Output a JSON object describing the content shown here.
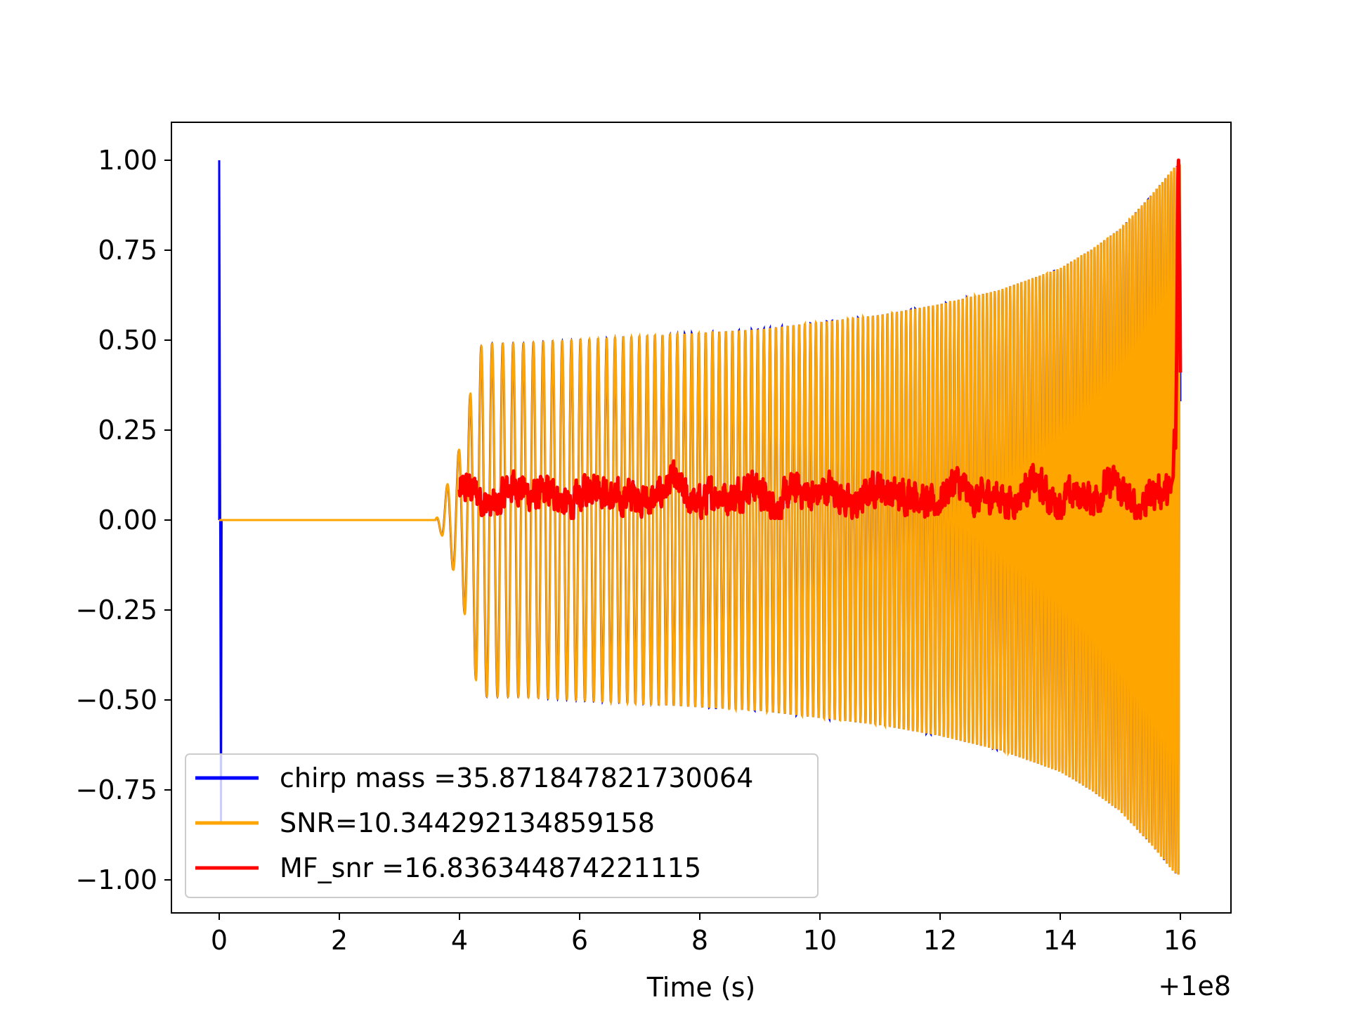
{
  "chart_data": {
    "type": "line",
    "title": "",
    "xlabel": "Time (s)",
    "ylabel": "",
    "x_offset_label": "+1e8",
    "xlim": [
      -0.8,
      16.8
    ],
    "ylim": [
      -1.09,
      1.1
    ],
    "xticks": [
      0,
      2,
      4,
      6,
      8,
      10,
      12,
      14,
      16
    ],
    "xtick_labels": [
      "0",
      "2",
      "4",
      "6",
      "8",
      "10",
      "12",
      "14",
      "16"
    ],
    "yticks": [
      1.0,
      0.75,
      0.5,
      0.25,
      0.0,
      -0.25,
      -0.5,
      -0.75,
      -1.0
    ],
    "ytick_labels": [
      "1.00",
      "0.75",
      "0.50",
      "0.25",
      "0.00",
      "−0.25",
      "−0.50",
      "−0.75",
      "−1.00"
    ],
    "grid": false,
    "legend_position": "lower-left",
    "series": [
      {
        "name": "chirp mass =35.871847821730064",
        "color": "#0000ff",
        "description_points": [
          [
            0.0,
            1.0
          ],
          [
            0.02,
            -0.84
          ],
          [
            0.04,
            0.0
          ],
          [
            15.95,
            0.98
          ],
          [
            16.0,
            -0.99
          ]
        ]
      },
      {
        "name": "SNR=10.344292134859158",
        "color": "#ffa500",
        "envelope": {
          "x": [
            0.0,
            3.6,
            3.7,
            3.8,
            3.9,
            4.0,
            4.1,
            4.2,
            4.3,
            4.4,
            5.0,
            6.0,
            7.0,
            8.0,
            9.0,
            10.0,
            11.0,
            12.0,
            13.0,
            14.0,
            14.5,
            15.0,
            15.5,
            15.9,
            16.0
          ],
          "amplitude": [
            0.0,
            0.0,
            0.04,
            0.1,
            0.14,
            0.2,
            0.27,
            0.37,
            0.47,
            0.49,
            0.49,
            0.5,
            0.51,
            0.52,
            0.53,
            0.55,
            0.57,
            0.6,
            0.64,
            0.7,
            0.75,
            0.81,
            0.9,
            0.98,
            0.99
          ]
        }
      },
      {
        "name": "MF_snr =16.836344874221115",
        "color": "#ff0000",
        "x_start": 4.0,
        "baseline": 0.07,
        "noise_max": 0.2,
        "peak": {
          "x": 15.97,
          "y": 1.0
        },
        "end_value": 0.41
      }
    ]
  }
}
